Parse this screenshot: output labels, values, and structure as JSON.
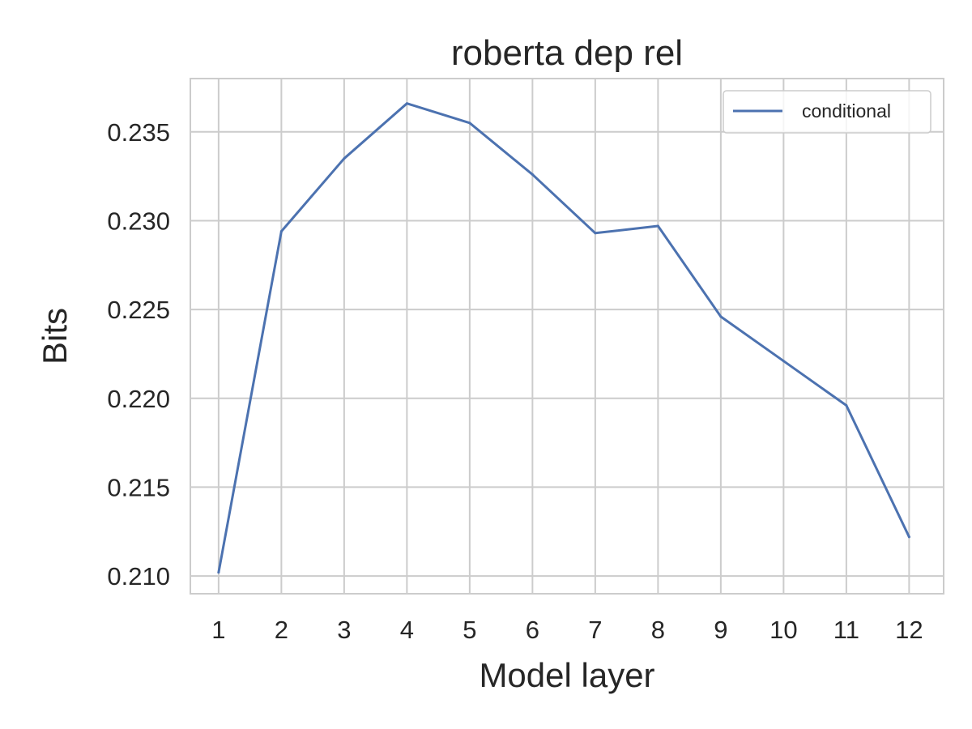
{
  "chart_data": {
    "type": "line",
    "title": "roberta dep rel",
    "xlabel": "Model layer",
    "ylabel": "Bits",
    "x": [
      1,
      2,
      3,
      4,
      5,
      6,
      7,
      8,
      9,
      10,
      11,
      12
    ],
    "x_tick_labels": [
      "1",
      "2",
      "3",
      "4",
      "5",
      "6",
      "7",
      "8",
      "9",
      "10",
      "11",
      "12"
    ],
    "y_ticks": [
      0.21,
      0.215,
      0.22,
      0.225,
      0.23,
      0.235
    ],
    "y_tick_labels": [
      "0.210",
      "0.215",
      "0.220",
      "0.225",
      "0.230",
      "0.235"
    ],
    "xlim": [
      0.55,
      12.55
    ],
    "ylim": [
      0.209,
      0.238
    ],
    "grid": true,
    "legend_position": "top-right",
    "series": [
      {
        "name": "conditional",
        "color": "#4c72b0",
        "values": [
          0.2102,
          0.2294,
          0.2335,
          0.2366,
          0.2355,
          0.2326,
          0.2293,
          0.2297,
          0.2246,
          0.2221,
          0.2196,
          0.2122
        ]
      }
    ]
  }
}
